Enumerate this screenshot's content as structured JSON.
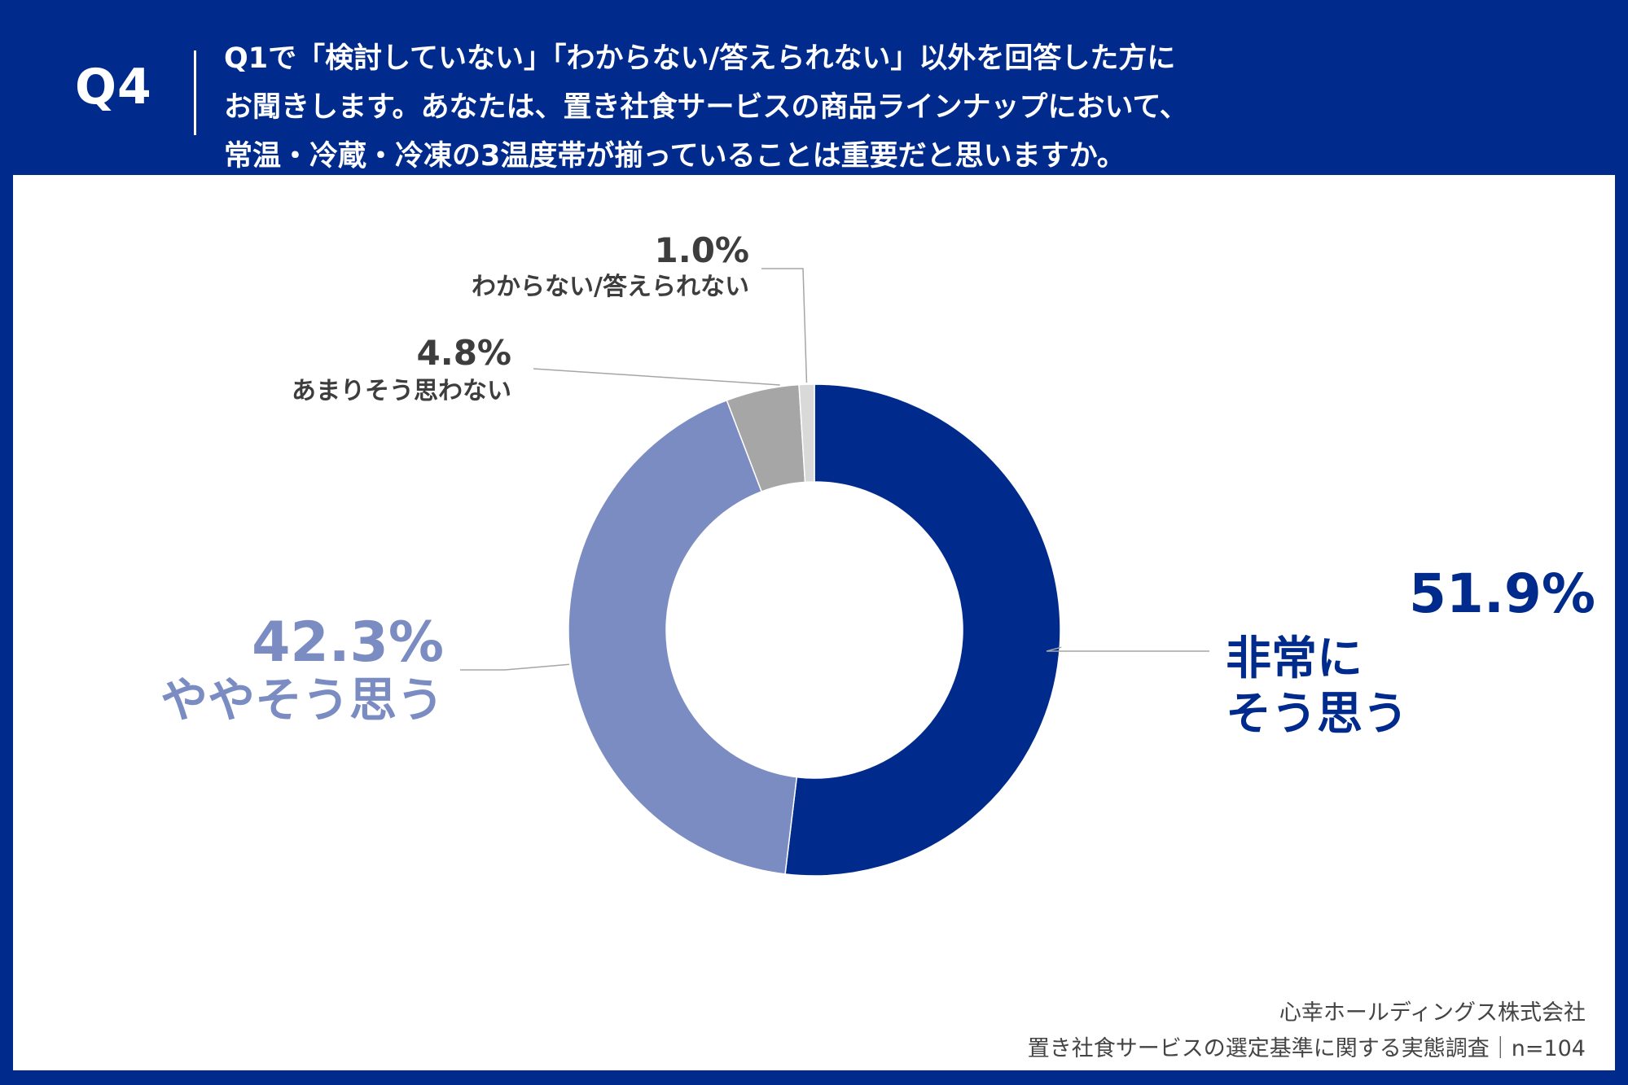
{
  "header": {
    "qnum": "Q4",
    "question_lines": [
      "Q1で「検討していない」「わからない/答えられない」以外を回答した方に",
      "お聞きします。あなたは、置き社食サービスの商品ラインナップにおいて、",
      "常温・冷蔵・冷凍の3温度帯が揃っていることは重要だと思いますか。"
    ]
  },
  "colors": {
    "header_bg": "#002B8C",
    "very_much": "#002B8C",
    "somewhat": "#7A8CC1",
    "not_much": "#A6A6A6",
    "unknown": "#D9D9D9",
    "small_label": "#3D3D3D"
  },
  "chart_data": {
    "type": "pie",
    "variant": "donut",
    "title": "",
    "slices": [
      {
        "label": "非常にそう思う",
        "label_lines": [
          "非常に",
          "そう思う"
        ],
        "value": 51.9,
        "value_text": "51.9%",
        "color": "#002B8C"
      },
      {
        "label": "ややそう思う",
        "label_lines": [
          "ややそう思う"
        ],
        "value": 42.3,
        "value_text": "42.3%",
        "color": "#7A8CC1"
      },
      {
        "label": "あまりそう思わない",
        "label_lines": [
          "あまりそう思わない"
        ],
        "value": 4.8,
        "value_text": "4.8%",
        "color": "#A6A6A6"
      },
      {
        "label": "わからない/答えられない",
        "label_lines": [
          "わからない/答えられない"
        ],
        "value": 1.0,
        "value_text": "1.0%",
        "color": "#D9D9D9"
      }
    ],
    "start": "top",
    "direction": "clockwise"
  },
  "footer": {
    "company": "心幸ホールディングス株式会社",
    "survey": "置き社食サービスの選定基準に関する実態調査｜n=104"
  }
}
